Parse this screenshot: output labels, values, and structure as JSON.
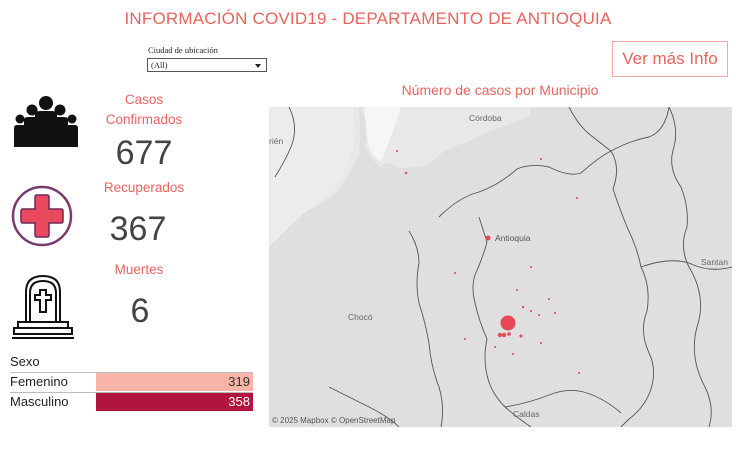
{
  "title": "INFORMACIÓN COVID19 - DEPARTAMENTO DE ANTIOQUIA",
  "filter": {
    "label": "Ciudad de ubicación",
    "value": "(All)"
  },
  "more_button": "Ver más Info",
  "kpis": {
    "confirmed": {
      "label_line1": "Casos",
      "label_line2": "Confirmados",
      "value": "677"
    },
    "recovered": {
      "label": "Recuperados",
      "value": "367"
    },
    "deaths": {
      "label": "Muertes",
      "value": "6"
    }
  },
  "map": {
    "title": "Número de casos por Municipio",
    "credit": "© 2025 Mapbox  © OpenStreetMap",
    "labels": {
      "cordoba": "Córdoba",
      "antioquia": "Antioquia",
      "choco": "Chocó",
      "caldas": "Caldas",
      "santander": "Santan",
      "edge": "rién"
    }
  },
  "sexo": {
    "header": "Sexo",
    "rows": [
      {
        "label": "Femenino",
        "value": "319",
        "color": "#f8b4a6"
      },
      {
        "label": "Masculino",
        "value": "358",
        "color": "#b0163d"
      }
    ]
  },
  "colors": {
    "accent": "#e8645e",
    "dot": "#e64b55"
  }
}
